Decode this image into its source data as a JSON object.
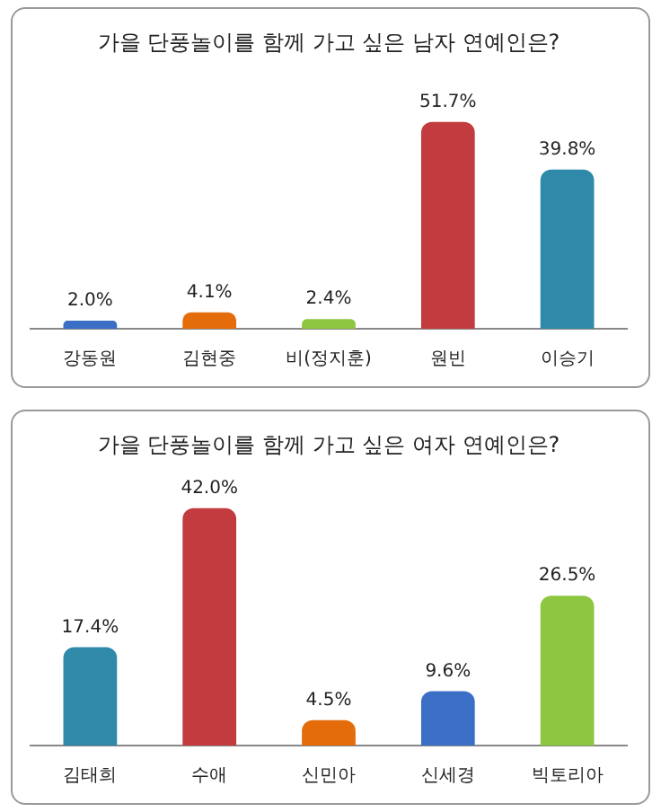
{
  "chart_data": [
    {
      "type": "bar",
      "title": "가을 단풍놀이를 함께 가고 싶은 남자 연예인은?",
      "categories": [
        "강동원",
        "김현중",
        "비(정지훈)",
        "원빈",
        "이승기"
      ],
      "values": [
        2.0,
        4.1,
        2.4,
        51.7,
        39.8
      ],
      "colors": [
        "#3b6fc6",
        "#e46c0a",
        "#8dc63f",
        "#c23b3e",
        "#2f8aa9"
      ],
      "value_labels": [
        "2.0%",
        "4.1%",
        "2.4%",
        "51.7%",
        "39.8%"
      ],
      "grid": false,
      "legend": false
    },
    {
      "type": "bar",
      "title": "가을 단풍놀이를 함께 가고 싶은 여자 연예인은?",
      "categories": [
        "김태희",
        "수애",
        "신민아",
        "신세경",
        "빅토리아"
      ],
      "values": [
        17.4,
        42.0,
        4.5,
        9.6,
        26.5
      ],
      "colors": [
        "#2f8aa9",
        "#c23b3e",
        "#e46c0a",
        "#3b6fc6",
        "#8dc63f"
      ],
      "value_labels": [
        "17.4%",
        "42.0%",
        "4.5%",
        "9.6%",
        "26.5%"
      ],
      "grid": false,
      "legend": false
    }
  ]
}
